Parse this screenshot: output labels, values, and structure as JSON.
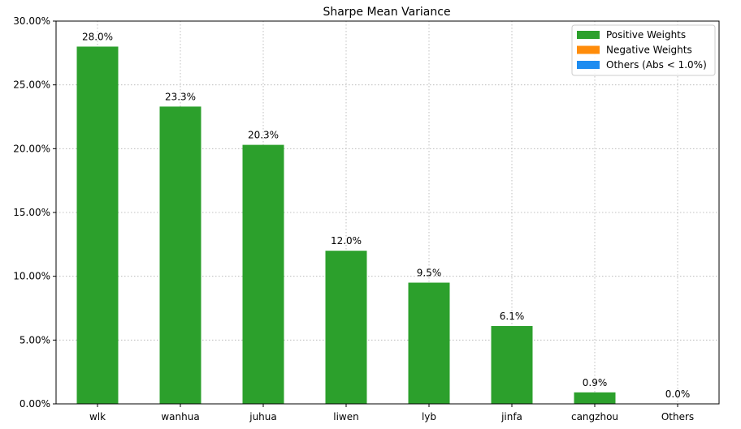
{
  "chart_data": {
    "type": "bar",
    "title": "Sharpe Mean Variance",
    "categories": [
      "wlk",
      "wanhua",
      "juhua",
      "liwen",
      "lyb",
      "jinfa",
      "cangzhou",
      "Others"
    ],
    "values": [
      28.0,
      23.3,
      20.3,
      12.0,
      9.5,
      6.1,
      0.9,
      0.0
    ],
    "value_labels": [
      "28.0%",
      "23.3%",
      "20.3%",
      "12.0%",
      "9.5%",
      "6.1%",
      "0.9%",
      "0.0%"
    ],
    "bar_groups": [
      "positive",
      "positive",
      "positive",
      "positive",
      "positive",
      "positive",
      "positive",
      "others"
    ],
    "ylim": [
      0,
      30
    ],
    "yticks": [
      0,
      5,
      10,
      15,
      20,
      25,
      30
    ],
    "ytick_labels": [
      "0.00%",
      "5.00%",
      "10.00%",
      "15.00%",
      "20.00%",
      "25.00%",
      "30.00%"
    ],
    "xlabel": "",
    "ylabel": "",
    "grid": true,
    "legend_position": "top-right",
    "legend": [
      {
        "key": "positive",
        "label": "Positive Weights",
        "color": "#2ca02c"
      },
      {
        "key": "negative",
        "label": "Negative Weights",
        "color": "#ff8c0a"
      },
      {
        "key": "others",
        "label": "Others (Abs < 1.0%)",
        "color": "#1e8cf0"
      }
    ]
  }
}
